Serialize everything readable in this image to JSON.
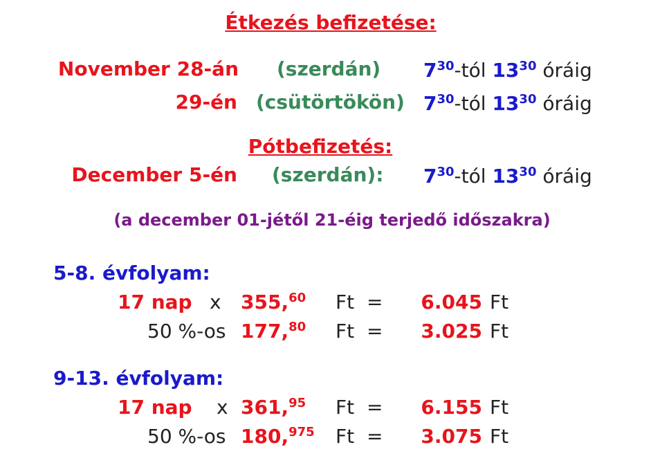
{
  "title": "Étkezés befizetése:",
  "schedule": [
    {
      "date": "November 28-án",
      "day": "(szerdán)",
      "from_h": "7",
      "from_m": "30",
      "from_suffix": "-tól",
      "to_h": "13",
      "to_m": "30",
      "to_suffix": "óráig"
    },
    {
      "date": "29-én",
      "day": "(csütörtökön)",
      "from_h": "7",
      "from_m": "30",
      "from_suffix": "-tól",
      "to_h": "13",
      "to_m": "30",
      "to_suffix": "óráig"
    }
  ],
  "late": {
    "title": "Pótbefizetés:",
    "date": "December 5-én",
    "day": "(szerdán):",
    "from_h": "7",
    "from_m": "30",
    "from_suffix": "-tól",
    "to_h": "13",
    "to_m": "30",
    "to_suffix": "óráig"
  },
  "period_note": "(a december 01-jétől 21-éig terjedő időszakra)",
  "grades": [
    {
      "label": "5-8. évfolyam:",
      "rows": [
        {
          "qty": "17 nap",
          "op": "x",
          "price_int": "355,",
          "price_dec": "60",
          "unit": "Ft",
          "eq": "=",
          "total": "6.045",
          "total_unit": "Ft"
        },
        {
          "qty": "50 %-os",
          "price_int": "177,",
          "price_dec": "80",
          "unit": "Ft",
          "eq": "=",
          "total": "3.025",
          "total_unit": "Ft"
        }
      ]
    },
    {
      "label": "9-13. évfolyam:",
      "rows": [
        {
          "qty": "17 nap",
          "op": "x",
          "price_int": "361,",
          "price_dec": "95",
          "unit": "Ft",
          "eq": "=",
          "total": "6.155",
          "total_unit": "Ft"
        },
        {
          "qty": "50 %-os",
          "price_int": "180,",
          "price_dec": "975",
          "unit": "Ft",
          "eq": "=",
          "total": "3.075",
          "total_unit": "Ft"
        }
      ]
    }
  ]
}
